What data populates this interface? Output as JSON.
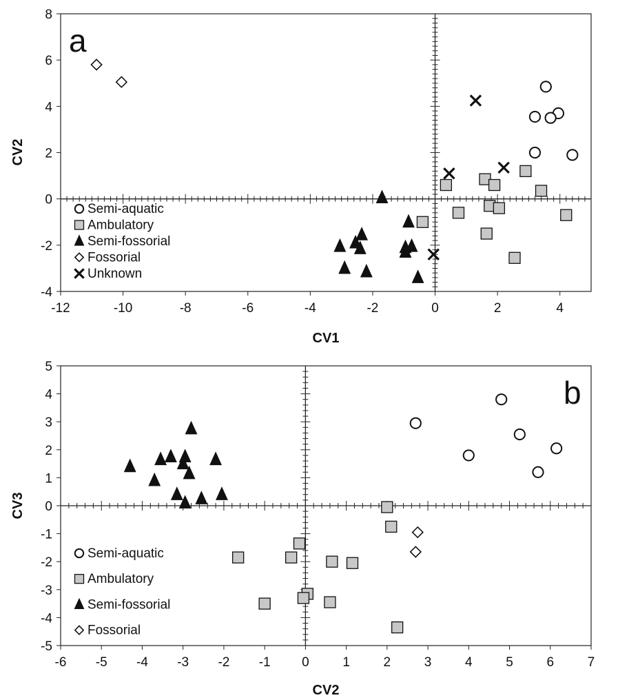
{
  "figure_title": "",
  "colors": {
    "square_fill": "#c8c8c8",
    "marker_stroke": "#111111",
    "triangle_fill": "#111111"
  },
  "chart_data": [
    {
      "type": "scatter",
      "panel_label": "a",
      "xlabel": "CV1",
      "ylabel": "CV2",
      "xlim": [
        -12,
        5
      ],
      "ylim": [
        -4,
        8
      ],
      "xticks": [
        -12,
        -10,
        -8,
        -6,
        -4,
        -2,
        0,
        2,
        4
      ],
      "yticks": [
        -4,
        -2,
        0,
        2,
        4,
        6,
        8
      ],
      "legend_position": "lower-left inside",
      "series": [
        {
          "name": "Semi-aquatic",
          "marker": "circle",
          "points": [
            [
              3.55,
              4.85
            ],
            [
              3.95,
              3.7
            ],
            [
              3.7,
              3.5
            ],
            [
              3.2,
              3.55
            ],
            [
              3.2,
              2.0
            ],
            [
              4.4,
              1.9
            ]
          ]
        },
        {
          "name": "Ambulatory",
          "marker": "square",
          "points": [
            [
              0.35,
              0.6
            ],
            [
              1.6,
              0.85
            ],
            [
              1.9,
              0.6
            ],
            [
              2.9,
              1.2
            ],
            [
              3.4,
              0.35
            ],
            [
              1.75,
              -0.3
            ],
            [
              2.05,
              -0.4
            ],
            [
              0.75,
              -0.6
            ],
            [
              4.2,
              -0.7
            ],
            [
              -0.4,
              -1.0
            ],
            [
              1.65,
              -1.5
            ],
            [
              2.55,
              -2.55
            ]
          ]
        },
        {
          "name": "Semi-fossorial",
          "marker": "triangle",
          "points": [
            [
              -1.7,
              0.05
            ],
            [
              -0.85,
              -1.0
            ],
            [
              -2.35,
              -1.55
            ],
            [
              -2.55,
              -1.9
            ],
            [
              -3.05,
              -2.05
            ],
            [
              -2.4,
              -2.15
            ],
            [
              -0.95,
              -2.1
            ],
            [
              -0.75,
              -2.05
            ],
            [
              -0.95,
              -2.3
            ],
            [
              -2.9,
              -3.0
            ],
            [
              -2.2,
              -3.15
            ],
            [
              -0.55,
              -3.4
            ]
          ]
        },
        {
          "name": "Fossorial",
          "marker": "diamond",
          "points": [
            [
              -10.85,
              5.8
            ],
            [
              -10.05,
              5.05
            ]
          ]
        },
        {
          "name": "Unknown",
          "marker": "cross",
          "points": [
            [
              1.3,
              4.25
            ],
            [
              0.45,
              1.1
            ],
            [
              2.2,
              1.35
            ],
            [
              -0.05,
              -2.4
            ]
          ]
        }
      ]
    },
    {
      "type": "scatter",
      "panel_label": "b",
      "xlabel": "CV2",
      "ylabel": "CV3",
      "xlim": [
        -6,
        7
      ],
      "ylim": [
        -5,
        5
      ],
      "xticks": [
        -6,
        -5,
        -4,
        -3,
        -2,
        -1,
        0,
        1,
        2,
        3,
        4,
        5,
        6,
        7
      ],
      "yticks": [
        -5,
        -4,
        -3,
        -2,
        -1,
        0,
        1,
        2,
        3,
        4,
        5
      ],
      "legend_position": "lower-left inside",
      "series": [
        {
          "name": "Semi-aquatic",
          "marker": "circle",
          "points": [
            [
              4.8,
              3.8
            ],
            [
              2.7,
              2.95
            ],
            [
              5.25,
              2.55
            ],
            [
              6.15,
              2.05
            ],
            [
              4.0,
              1.8
            ],
            [
              5.7,
              1.2
            ]
          ]
        },
        {
          "name": "Ambulatory",
          "marker": "square",
          "points": [
            [
              2.0,
              -0.05
            ],
            [
              2.1,
              -0.75
            ],
            [
              -0.15,
              -1.35
            ],
            [
              -1.65,
              -1.85
            ],
            [
              -0.35,
              -1.85
            ],
            [
              0.65,
              -2.0
            ],
            [
              1.15,
              -2.05
            ],
            [
              0.05,
              -3.15
            ],
            [
              -0.05,
              -3.3
            ],
            [
              0.6,
              -3.45
            ],
            [
              -1.0,
              -3.5
            ],
            [
              2.25,
              -4.35
            ]
          ]
        },
        {
          "name": "Semi-fossorial",
          "marker": "triangle",
          "points": [
            [
              -2.8,
              2.75
            ],
            [
              -3.3,
              1.75
            ],
            [
              -3.55,
              1.65
            ],
            [
              -2.95,
              1.75
            ],
            [
              -2.2,
              1.65
            ],
            [
              -3.0,
              1.5
            ],
            [
              -4.3,
              1.4
            ],
            [
              -2.85,
              1.15
            ],
            [
              -3.7,
              0.9
            ],
            [
              -3.15,
              0.4
            ],
            [
              -2.05,
              0.4
            ],
            [
              -2.55,
              0.25
            ],
            [
              -2.95,
              0.1
            ]
          ]
        },
        {
          "name": "Fossorial",
          "marker": "diamond",
          "points": [
            [
              2.75,
              -0.95
            ],
            [
              2.7,
              -1.65
            ]
          ]
        }
      ]
    }
  ]
}
